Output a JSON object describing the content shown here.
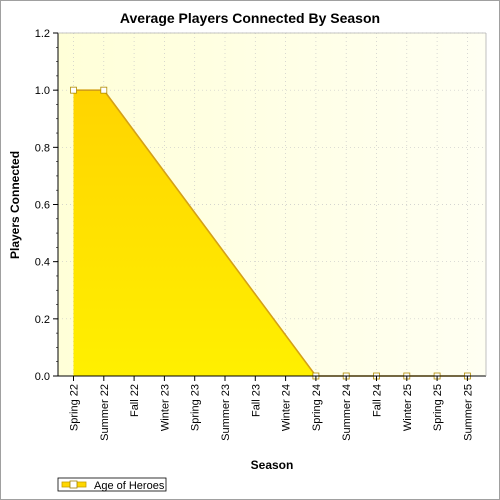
{
  "chart_data": {
    "type": "area",
    "title": "Average Players Connected By Season",
    "xlabel": "Season",
    "ylabel": "Players Connected",
    "categories": [
      "Spring 22",
      "Summer 22",
      "Fall 22",
      "Winter 23",
      "Spring 23",
      "Summer 23",
      "Fall 23",
      "Winter 24",
      "Spring 24",
      "Summer 24",
      "Fall 24",
      "Winter 25",
      "Spring 25",
      "Summer 25"
    ],
    "series": [
      {
        "name": "Age of Heroes",
        "values": [
          1.0,
          1.0,
          null,
          null,
          null,
          null,
          null,
          null,
          0.0,
          0.0,
          0.0,
          0.0,
          0.0,
          0.0
        ]
      }
    ],
    "ylim": [
      0,
      1.2
    ],
    "yticks": [
      "0.0",
      "0.2",
      "0.4",
      "0.6",
      "0.8",
      "1.0",
      "1.2"
    ],
    "grid": true,
    "legend_position": "bottom-left",
    "colors": {
      "fill_top": "#ffd700",
      "fill_bottom": "#ffee00",
      "line": "#d4a017",
      "marker_fill": "#ffffff",
      "plot_bg_left": "#ffffe0",
      "plot_bg_right": "#fffff0"
    }
  }
}
